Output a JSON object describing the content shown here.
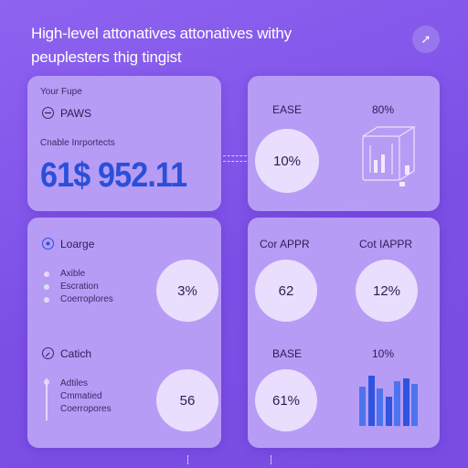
{
  "header": {
    "title_line1": "High-level attonatives attonatives withy",
    "title_line2": "peuplesters thig tingist"
  },
  "card_balance": {
    "label_top": "Your Fupe",
    "account_label": "PAWS",
    "subtitle": "Cnable Inrportects",
    "amount": "61$ 952.11"
  },
  "card_ease": {
    "heading_left": "EASE",
    "heading_right": "80%",
    "circle_value": "10%"
  },
  "card_leage": {
    "title": "Loarge",
    "items": [
      "Axible",
      "Escration",
      "Coerroplores"
    ],
    "circle_value": "3%"
  },
  "card_catich": {
    "title": "Catich",
    "items": [
      "Adtiles",
      "Cmmatied",
      "Coerropores"
    ],
    "circle_value": "56"
  },
  "card_apps": {
    "heading_left": "Cor APPR",
    "heading_right": "Cot IAPPR",
    "circle_left": "62",
    "circle_right": "12%",
    "heading_bottom_left": "BASE",
    "heading_bottom_right": "10%",
    "circle_bottom": "61%",
    "bars": [
      0.75,
      0.95,
      0.7,
      0.55,
      0.85,
      0.9,
      0.8
    ]
  },
  "colors": {
    "accent": "#3d63e6",
    "panel": "#b79cf6",
    "background": "#7b4fe6"
  },
  "icons": {
    "corner": "arrow-icon",
    "account": "account-icon",
    "location": "pin-icon",
    "search": "search-icon"
  }
}
